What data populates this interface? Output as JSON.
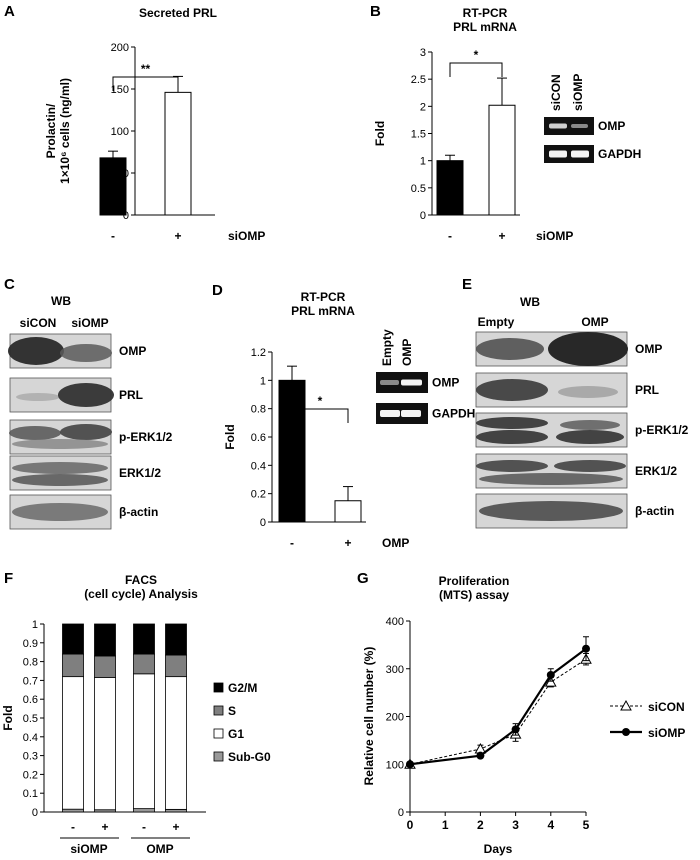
{
  "figure": {
    "panels": [
      {
        "id": "A",
        "label": "A",
        "title_lines": [
          "Secreted PRL"
        ],
        "type": "bar",
        "ylabel_lines": [
          "Prolactin/",
          "1×10⁶ cells (ng/ml)"
        ],
        "yticks": [
          "0",
          "50",
          "100",
          "150",
          "200"
        ],
        "ylim": [
          0,
          200
        ],
        "categories": [
          "-",
          "+"
        ],
        "treatment_label": "siOMP",
        "values": [
          68,
          146
        ],
        "errors": [
          8,
          19
        ],
        "bar_fills": [
          "#000000",
          "#ffffff"
        ],
        "significance": "**"
      },
      {
        "id": "B",
        "label": "B",
        "title_lines": [
          "RT-PCR",
          "PRL mRNA"
        ],
        "type": "bar",
        "ylabel_lines": [
          "Fold"
        ],
        "yticks": [
          "0",
          "0.5",
          "1",
          "1.5",
          "2",
          "2.5",
          "3"
        ],
        "ylim": [
          0,
          3
        ],
        "categories": [
          "-",
          "+"
        ],
        "treatment_label": "siOMP",
        "values": [
          1.0,
          2.02
        ],
        "errors": [
          0.1,
          0.5
        ],
        "bar_fills": [
          "#000000",
          "#ffffff"
        ],
        "significance": "*",
        "gel": {
          "lanes": [
            "siCON",
            "siOMP"
          ],
          "rows": [
            "OMP",
            "GAPDH"
          ]
        }
      },
      {
        "id": "C",
        "label": "C",
        "title_lines": [
          "WB"
        ],
        "type": "blot",
        "lanes": [
          "siCON",
          "siOMP"
        ],
        "rows": [
          "OMP",
          "PRL",
          "p-ERK1/2",
          "ERK1/2",
          "β-actin"
        ]
      },
      {
        "id": "D",
        "label": "D",
        "title_lines": [
          "RT-PCR",
          "PRL mRNA"
        ],
        "type": "bar",
        "ylabel_lines": [
          "Fold"
        ],
        "yticks": [
          "0",
          "0.2",
          "0.4",
          "0.6",
          "0.8",
          "1",
          "1.2"
        ],
        "ylim": [
          0,
          1.2
        ],
        "categories": [
          "-",
          "+"
        ],
        "treatment_label": "OMP",
        "values": [
          1.0,
          0.15
        ],
        "errors": [
          0.1,
          0.1
        ],
        "bar_fills": [
          "#000000",
          "#ffffff"
        ],
        "significance": "*",
        "gel": {
          "lanes": [
            "Empty",
            "OMP"
          ],
          "rows": [
            "OMP",
            "GAPDH"
          ]
        }
      },
      {
        "id": "E",
        "label": "E",
        "title_lines": [
          "WB"
        ],
        "type": "blot",
        "lanes": [
          "Empty",
          "OMP"
        ],
        "rows": [
          "OMP",
          "PRL",
          "p-ERK1/2",
          "ERK1/2",
          "β-actin"
        ]
      },
      {
        "id": "F",
        "label": "F",
        "title_lines": [
          "FACS",
          "(cell cycle) Analysis"
        ],
        "type": "stacked_bar",
        "ylabel_lines": [
          "Fold"
        ],
        "yticks": [
          "0",
          "0.1",
          "0.2",
          "0.3",
          "0.4",
          "0.5",
          "0.6",
          "0.7",
          "0.8",
          "0.9",
          "1"
        ],
        "ylim": [
          0,
          1
        ],
        "categories": [
          "-",
          "+",
          "-",
          "+"
        ],
        "groups": [
          "siOMP",
          "OMP"
        ],
        "legend": [
          "G2/M",
          "S",
          "G1",
          "Sub-G0"
        ]
      },
      {
        "id": "G",
        "label": "G",
        "title_lines": [
          "Proliferation",
          "(MTS) assay"
        ],
        "type": "line",
        "ylabel_lines": [
          "Relative cell number (%)"
        ],
        "yticks": [
          "0",
          "100",
          "200",
          "300",
          "400"
        ],
        "ylim": [
          0,
          400
        ],
        "xticks": [
          "0",
          "1",
          "2",
          "3",
          "4",
          "5"
        ],
        "xlabel": "Days",
        "legend": [
          "siCON",
          "siOMP"
        ]
      }
    ]
  },
  "chart_data": [
    {
      "type": "bar",
      "panel": "A",
      "title": "Secreted PRL",
      "categories": [
        "-",
        "+"
      ],
      "ylabel": "Prolactin/1×10⁶ cells (ng/ml)",
      "xlabel": "siOMP",
      "values": [
        68,
        146
      ],
      "errors": [
        8,
        19
      ],
      "ylim": [
        0,
        200
      ]
    },
    {
      "type": "bar",
      "panel": "B",
      "title": "RT-PCR PRL mRNA",
      "categories": [
        "-",
        "+"
      ],
      "ylabel": "Fold",
      "xlabel": "siOMP",
      "values": [
        1.0,
        2.02
      ],
      "errors": [
        0.1,
        0.5
      ],
      "ylim": [
        0,
        3
      ]
    },
    {
      "type": "bar",
      "panel": "D",
      "title": "RT-PCR PRL mRNA",
      "categories": [
        "-",
        "+"
      ],
      "ylabel": "Fold",
      "xlabel": "OMP",
      "values": [
        1.0,
        0.15
      ],
      "errors": [
        0.1,
        0.1
      ],
      "ylim": [
        0,
        1.2
      ]
    },
    {
      "type": "bar",
      "panel": "F",
      "title": "FACS (cell cycle) Analysis",
      "categories": [
        "siOMP -",
        "siOMP +",
        "OMP -",
        "OMP +"
      ],
      "ylabel": "Fold",
      "ylim": [
        0,
        1
      ],
      "series": [
        {
          "name": "Sub-G0",
          "values": [
            0.015,
            0.012,
            0.018,
            0.014
          ],
          "color": "#999999"
        },
        {
          "name": "G1",
          "values": [
            0.705,
            0.703,
            0.717,
            0.706
          ],
          "color": "#ffffff"
        },
        {
          "name": "S",
          "values": [
            0.12,
            0.115,
            0.105,
            0.115
          ],
          "color": "#7f7f7f"
        },
        {
          "name": "G2/M",
          "values": [
            0.16,
            0.17,
            0.16,
            0.165
          ],
          "color": "#000000"
        }
      ]
    },
    {
      "type": "line",
      "panel": "G",
      "title": "Proliferation (MTS) assay",
      "xlabel": "Days",
      "ylabel": "Relative cell number (%)",
      "xlim": [
        0,
        5
      ],
      "ylim": [
        0,
        400
      ],
      "series": [
        {
          "name": "siCON",
          "x": [
            0,
            2,
            3,
            4,
            5
          ],
          "y": [
            100,
            132,
            163,
            272,
            320
          ],
          "errors": [
            0,
            8,
            15,
            10,
            12
          ],
          "marker": "open-triangle",
          "line": "dashed"
        },
        {
          "name": "siOMP",
          "x": [
            0,
            2,
            3,
            4,
            5
          ],
          "y": [
            100,
            118,
            173,
            287,
            342
          ],
          "errors": [
            0,
            0,
            12,
            13,
            25
          ],
          "marker": "filled-circle",
          "line": "solid"
        }
      ]
    }
  ]
}
